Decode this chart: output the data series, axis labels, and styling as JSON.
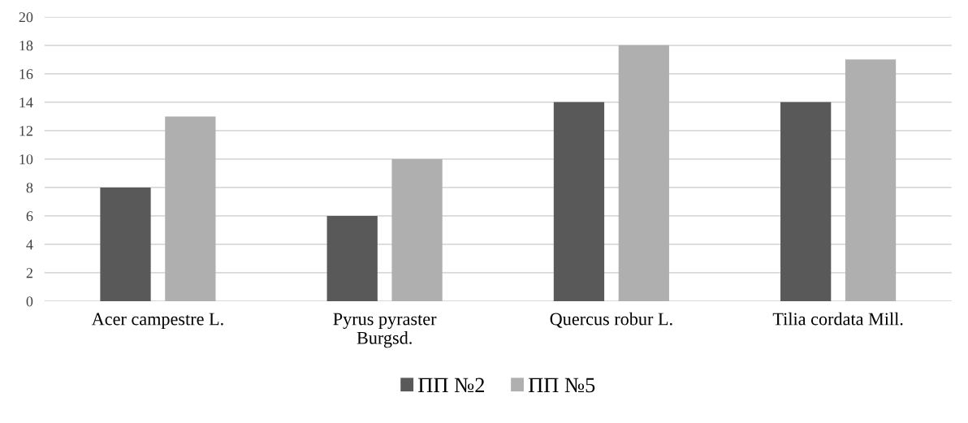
{
  "chart_data": {
    "type": "bar",
    "categories": [
      "Acer campestre L.",
      "Pyrus pyraster\nBurgsd.",
      "Quercus robur L.",
      "Tilia cordata Mill."
    ],
    "series": [
      {
        "name": "ПП №2",
        "color": "#595959",
        "values": [
          8,
          6,
          14,
          14
        ]
      },
      {
        "name": "ПП №5",
        "color": "#afafaf",
        "values": [
          13,
          10,
          18,
          17
        ]
      }
    ],
    "ylim": [
      0,
      20
    ],
    "yticks": [
      0,
      2,
      4,
      6,
      8,
      10,
      12,
      14,
      16,
      18,
      20
    ],
    "grid": "y",
    "legend": "bottom"
  }
}
